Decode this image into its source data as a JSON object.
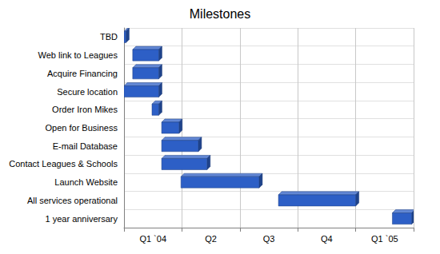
{
  "chart_data": {
    "type": "gantt",
    "title": "Milestones",
    "orientation": "horizontal",
    "categories": [
      "TBD",
      "Web link to Leagues",
      "Acquire Financing",
      "Secure location",
      "Order Iron Mikes",
      "Open for Business",
      "E-mail Database",
      "Contact Leagues & Schools",
      "Launch Website",
      "All services operational",
      "1 year anniversary"
    ],
    "values": [
      [
        0,
        0.1
      ],
      [
        0.45,
        1.8
      ],
      [
        0.45,
        1.8
      ],
      [
        0,
        1.8
      ],
      [
        1.45,
        1.8
      ],
      [
        1.95,
        2.85
      ],
      [
        1.95,
        3.85
      ],
      [
        1.95,
        4.3
      ],
      [
        2.95,
        7.0
      ],
      [
        8.0,
        12.0
      ],
      [
        13.9,
        14.9
      ]
    ],
    "color": "#2d5fc6",
    "xlim": [
      0,
      15
    ],
    "xticks": [
      {
        "value": 1.5,
        "label": "Q1 `04"
      },
      {
        "value": 4.5,
        "label": "Q2"
      },
      {
        "value": 7.5,
        "label": "Q3"
      },
      {
        "value": 10.5,
        "label": "Q4"
      },
      {
        "value": 13.5,
        "label": "Q1 `05"
      }
    ],
    "grid": true
  }
}
